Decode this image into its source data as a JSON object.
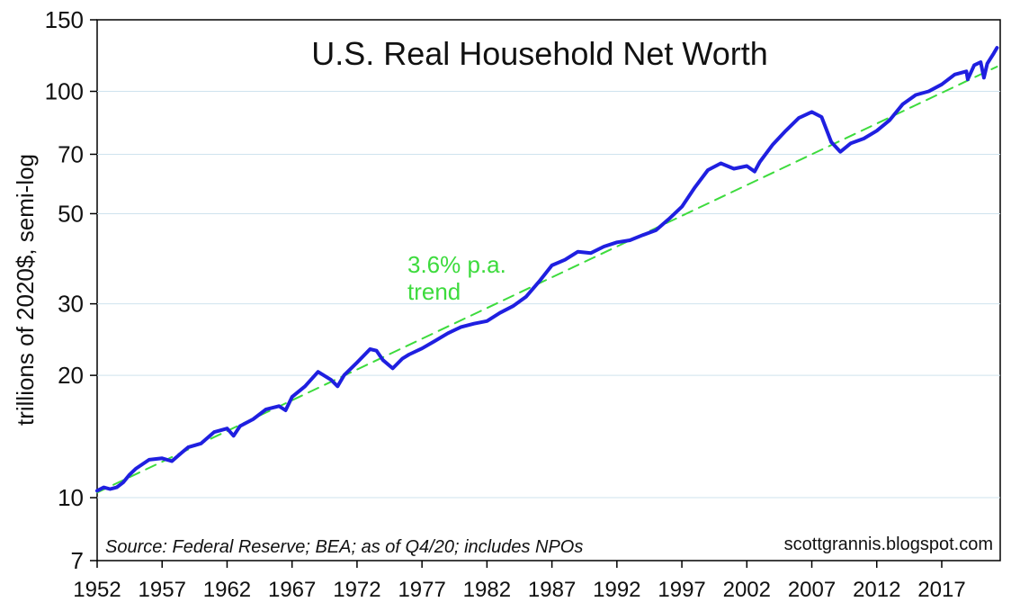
{
  "chart_data": {
    "type": "line",
    "title": "U.S. Real Household Net Worth",
    "ylabel": "trillions of 2020$, semi-log",
    "xlabel": "",
    "y_scale": "log",
    "ylim": [
      7,
      150
    ],
    "xlim": [
      1952,
      2021.5
    ],
    "y_ticks": [
      7,
      10,
      20,
      30,
      50,
      70,
      100,
      150
    ],
    "x_ticks": [
      1952,
      1957,
      1962,
      1967,
      1972,
      1977,
      1982,
      1987,
      1992,
      1997,
      2002,
      2007,
      2012,
      2017
    ],
    "grid": true,
    "legend": "none",
    "annotations": {
      "trend_label_line1": "3.6% p.a.",
      "trend_label_line2": "trend",
      "source": "Source: Federal Reserve; BEA; as of Q4/20; includes NPOs",
      "credit": "scottgrannis.blogspot.com"
    },
    "series": [
      {
        "color": "#1f1fe0",
        "style": "solid",
        "x": [
          1952,
          1952.5,
          1953,
          1953.5,
          1954,
          1954.5,
          1955,
          1956,
          1957,
          1957.75,
          1958.5,
          1959,
          1960,
          1961,
          1962,
          1962.5,
          1963,
          1964,
          1965,
          1966,
          1966.5,
          1967,
          1968,
          1969,
          1970,
          1970.5,
          1971,
          1972,
          1973,
          1973.5,
          1974,
          1974.75,
          1975.5,
          1976,
          1977,
          1978,
          1979,
          1980,
          1981,
          1982,
          1983,
          1984,
          1985,
          1986,
          1987,
          1988,
          1989,
          1990,
          1991,
          1992,
          1993,
          1994,
          1995,
          1996,
          1997,
          1998,
          1999,
          2000,
          2001,
          2002,
          2002.6,
          2003,
          2004,
          2005,
          2006,
          2007,
          2007.75,
          2008.5,
          2009.2,
          2010,
          2011,
          2012,
          2013,
          2014,
          2015,
          2016,
          2017,
          2018,
          2018.9,
          2019,
          2019.5,
          2020,
          2020.25,
          2020.5,
          2021,
          2021.25
        ],
        "y": [
          10.4,
          10.6,
          10.5,
          10.6,
          10.9,
          11.4,
          11.8,
          12.4,
          12.5,
          12.3,
          12.9,
          13.3,
          13.6,
          14.5,
          14.8,
          14.2,
          15.0,
          15.6,
          16.5,
          16.8,
          16.4,
          17.7,
          18.8,
          20.4,
          19.5,
          18.8,
          20.0,
          21.5,
          23.2,
          23.0,
          21.8,
          20.8,
          22.0,
          22.5,
          23.3,
          24.3,
          25.4,
          26.3,
          26.8,
          27.2,
          28.5,
          29.6,
          31.2,
          34.0,
          37.3,
          38.5,
          40.3,
          40.0,
          41.5,
          42.5,
          43.0,
          44.3,
          45.5,
          48.5,
          52.0,
          58.0,
          64.0,
          66.5,
          64.5,
          65.5,
          63.5,
          67.0,
          74.0,
          80.0,
          86.0,
          89.0,
          86.5,
          75.0,
          71.0,
          74.5,
          76.5,
          80.0,
          85.0,
          93.0,
          98.0,
          100.0,
          104.0,
          110.0,
          112.0,
          107.0,
          116.0,
          118.0,
          108.0,
          117.0,
          124.0,
          128.0
        ]
      },
      {
        "color": "#3ddb3d",
        "style": "dashed",
        "x": [
          1952,
          2021.25
        ],
        "y": [
          10.3,
          115.0
        ]
      }
    ]
  }
}
